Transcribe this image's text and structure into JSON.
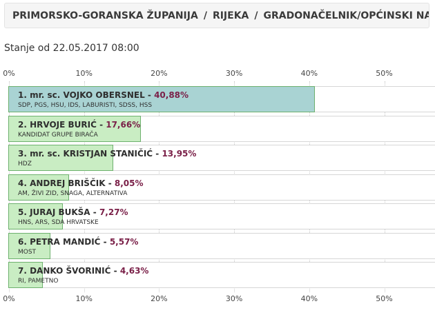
{
  "breadcrumb": {
    "county": "PRIMORSKO-GORANSKA ŽUPANIJA",
    "separator": "/",
    "city": "RIJEKA",
    "election": "GRADONAČELNIK/OPĆINSKI NAČELNIK"
  },
  "status_text": "Stanje od 22.05.2017 08:00",
  "colors": {
    "leader_bar": "#a9d3d3",
    "other_bar": "#c9edc3",
    "percent_text": "#7a2048"
  },
  "chart_data": {
    "type": "bar",
    "orientation": "horizontal",
    "xlim": [
      0,
      57
    ],
    "ticks": [
      "0%",
      "10%",
      "20%",
      "30%",
      "40%",
      "50%"
    ],
    "tick_values": [
      0,
      10,
      20,
      30,
      40,
      50
    ],
    "grid": true,
    "candidates": [
      {
        "name": "1. mr. sc. VOJKO OBERSNEL",
        "percent_label": "40,88%",
        "value": 40.88,
        "parties": "SDP, PGS, HSU, IDS, LABURISTI, SDSS, HSS",
        "leader": true
      },
      {
        "name": "2. HRVOJE BURIĆ",
        "percent_label": "17,66%",
        "value": 17.66,
        "parties": "KANDIDAT GRUPE BIRAČA",
        "leader": false
      },
      {
        "name": "3. mr. sc. KRISTJAN STANIČIĆ",
        "percent_label": "13,95%",
        "value": 13.95,
        "parties": "HDZ",
        "leader": false
      },
      {
        "name": "4. ANDREJ BRIŠČIK",
        "percent_label": "8,05%",
        "value": 8.05,
        "parties": "AM, ŽIVI ZID, SNAGA, ALTERNATIVA",
        "leader": false
      },
      {
        "name": "5. JURAJ BUKŠA",
        "percent_label": "7,27%",
        "value": 7.27,
        "parties": "HNS, ARS, SDA HRVATSKE",
        "leader": false
      },
      {
        "name": "6. PETRA MANDIĆ",
        "percent_label": "5,57%",
        "value": 5.57,
        "parties": "MOST",
        "leader": false
      },
      {
        "name": "7. DANKO ŠVORINIĆ",
        "percent_label": "4,63%",
        "value": 4.63,
        "parties": "RI, PAMETNO",
        "leader": false
      }
    ]
  }
}
